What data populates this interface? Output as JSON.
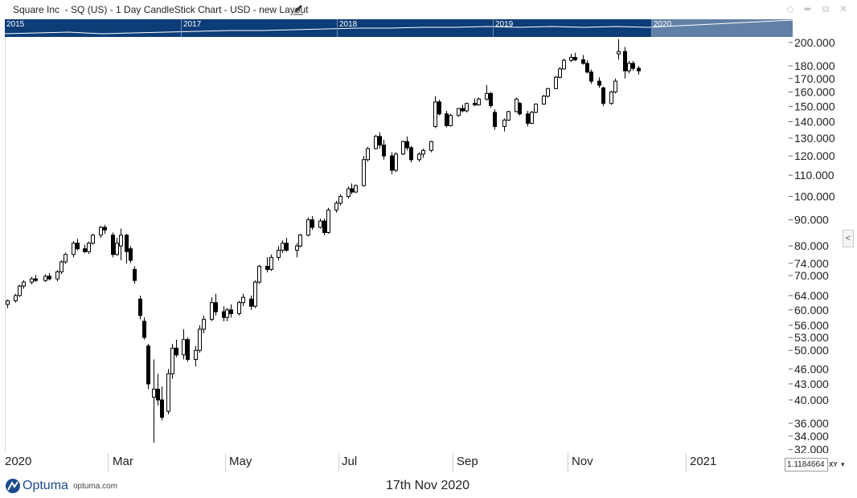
{
  "window": {
    "title": "Square Inc  - SQ (US) - 1 Day CandleStick Chart - USD - new Layout",
    "icons": [
      "edit-icon",
      "diamond-icon",
      "pin-icon",
      "restore-icon",
      "close-icon"
    ]
  },
  "navigator": {
    "years": [
      "2015",
      "2017",
      "2018",
      "2019",
      "2020"
    ],
    "background": "#0d3d77"
  },
  "date_axis": {
    "labels": [
      "2020",
      "Mar",
      "May",
      "Jul",
      "Sep",
      "Nov",
      "2021"
    ]
  },
  "price_axis": {
    "labels": [
      "200.000",
      "180.000",
      "170.000",
      "160.000",
      "150.000",
      "140.000",
      "130.000",
      "120.000",
      "110.000",
      "100.000",
      "90.000",
      "80.000",
      "74.000",
      "70.000",
      "64.000",
      "60.000",
      "56.000",
      "53.000",
      "50.000",
      "46.000",
      "43.000",
      "40.000",
      "36.000",
      "34.000",
      "32.000"
    ]
  },
  "controls": {
    "scale_value": "1.1184664",
    "xy_label": "XY",
    "collapse_glyph": "<"
  },
  "footer": {
    "brand": "Optuma",
    "url": "optuma.com",
    "date": "17th Nov 2020"
  },
  "chart_data": {
    "type": "candlestick",
    "symbol": "SQ (US)",
    "interval": "1 Day",
    "currency": "USD",
    "y_scale": "log",
    "ylim": [
      31.5,
      205
    ],
    "x_range": [
      "2020-01-01",
      "2021-01-31"
    ],
    "grid": false,
    "ohlc_series": [
      [
        "2020-01-02",
        61.5,
        62.8,
        60.5,
        62.5
      ],
      [
        "2020-01-06",
        62.5,
        64.5,
        62.0,
        64.0
      ],
      [
        "2020-01-08",
        64.0,
        67.2,
        63.6,
        66.8
      ],
      [
        "2020-01-10",
        66.8,
        68.6,
        66.0,
        68.0
      ],
      [
        "2020-01-14",
        68.0,
        69.6,
        67.3,
        69.0
      ],
      [
        "2020-01-16",
        69.0,
        70.2,
        68.0,
        68.5
      ],
      [
        "2020-01-21",
        68.5,
        70.4,
        68.0,
        69.8
      ],
      [
        "2020-01-23",
        69.8,
        70.8,
        68.5,
        69.0
      ],
      [
        "2020-01-27",
        69.0,
        71.8,
        68.2,
        71.2
      ],
      [
        "2020-01-29",
        71.2,
        75.0,
        70.5,
        74.5
      ],
      [
        "2020-01-31",
        74.5,
        77.6,
        73.8,
        77.0
      ],
      [
        "2020-02-04",
        77.0,
        81.8,
        76.0,
        81.0
      ],
      [
        "2020-02-06",
        81.0,
        82.6,
        78.5,
        79.0
      ],
      [
        "2020-02-10",
        79.0,
        80.5,
        77.5,
        78.0
      ],
      [
        "2020-02-12",
        78.0,
        81.6,
        77.2,
        81.0
      ],
      [
        "2020-02-14",
        81.0,
        84.5,
        80.5,
        84.0
      ],
      [
        "2020-02-18",
        84.0,
        87.6,
        83.0,
        87.0
      ],
      [
        "2020-02-20",
        87.0,
        88.0,
        84.5,
        86.0
      ],
      [
        "2020-02-24",
        84.0,
        85.0,
        76.0,
        77.0
      ],
      [
        "2020-02-26",
        77.0,
        83.0,
        76.5,
        81.0
      ],
      [
        "2020-02-28",
        80.0,
        86.5,
        75.0,
        84.0
      ],
      [
        "2020-03-02",
        84.0,
        84.5,
        74.0,
        78.0
      ],
      [
        "2020-03-04",
        79.0,
        80.0,
        74.0,
        75.0
      ],
      [
        "2020-03-06",
        72.0,
        73.0,
        67.5,
        68.5
      ],
      [
        "2020-03-09",
        63.0,
        64.0,
        57.5,
        58.5
      ],
      [
        "2020-03-11",
        57.0,
        58.0,
        52.5,
        53.0
      ],
      [
        "2020-03-13",
        51.0,
        51.5,
        42.0,
        43.0
      ],
      [
        "2020-03-16",
        40.5,
        48.0,
        33.0,
        42.0
      ],
      [
        "2020-03-18",
        42.0,
        45.0,
        39.0,
        40.0
      ],
      [
        "2020-03-20",
        40.0,
        42.5,
        36.5,
        37.0
      ],
      [
        "2020-03-23",
        38.0,
        46.0,
        37.5,
        45.0
      ],
      [
        "2020-03-25",
        45.0,
        51.5,
        44.0,
        50.5
      ],
      [
        "2020-03-27",
        50.5,
        52.5,
        48.5,
        49.0
      ],
      [
        "2020-03-31",
        49.0,
        55.0,
        48.0,
        52.5
      ],
      [
        "2020-04-02",
        52.5,
        53.0,
        47.5,
        48.0
      ],
      [
        "2020-04-06",
        48.0,
        51.0,
        46.5,
        50.0
      ],
      [
        "2020-04-08",
        50.0,
        56.0,
        49.5,
        55.0
      ],
      [
        "2020-04-10",
        55.0,
        58.5,
        54.0,
        57.5
      ],
      [
        "2020-04-14",
        57.5,
        63.5,
        57.0,
        62.0
      ],
      [
        "2020-04-16",
        62.0,
        64.5,
        58.5,
        59.5
      ],
      [
        "2020-04-20",
        59.5,
        61.0,
        57.0,
        58.0
      ],
      [
        "2020-04-22",
        58.0,
        60.5,
        57.0,
        60.0
      ],
      [
        "2020-04-24",
        60.0,
        61.5,
        58.0,
        59.0
      ],
      [
        "2020-04-28",
        59.0,
        62.5,
        58.5,
        62.0
      ],
      [
        "2020-04-30",
        62.0,
        64.5,
        61.0,
        63.5
      ],
      [
        "2020-05-04",
        63.0,
        64.0,
        60.0,
        61.0
      ],
      [
        "2020-05-06",
        61.0,
        68.5,
        60.5,
        68.0
      ],
      [
        "2020-05-08",
        68.0,
        73.5,
        67.5,
        73.0
      ],
      [
        "2020-05-12",
        73.0,
        76.0,
        71.0,
        72.0
      ],
      [
        "2020-05-14",
        72.0,
        77.0,
        71.5,
        76.0
      ],
      [
        "2020-05-18",
        76.0,
        80.0,
        75.0,
        78.5
      ],
      [
        "2020-05-20",
        78.5,
        82.0,
        77.5,
        81.0
      ],
      [
        "2020-05-22",
        81.0,
        83.0,
        78.0,
        78.5
      ],
      [
        "2020-05-27",
        78.5,
        81.0,
        76.0,
        80.0
      ],
      [
        "2020-05-29",
        80.0,
        84.5,
        79.5,
        84.0
      ],
      [
        "2020-06-02",
        84.0,
        91.0,
        83.5,
        90.0
      ],
      [
        "2020-06-04",
        90.0,
        91.5,
        86.0,
        87.0
      ],
      [
        "2020-06-08",
        87.0,
        90.5,
        86.5,
        89.5
      ],
      [
        "2020-06-10",
        89.5,
        90.5,
        84.0,
        85.0
      ],
      [
        "2020-06-12",
        85.0,
        95.0,
        84.5,
        94.0
      ],
      [
        "2020-06-16",
        94.0,
        98.0,
        93.0,
        97.0
      ],
      [
        "2020-06-18",
        97.0,
        101.0,
        96.0,
        100.0
      ],
      [
        "2020-06-22",
        100.0,
        104.5,
        99.0,
        103.5
      ],
      [
        "2020-06-24",
        103.5,
        106.0,
        101.0,
        102.0
      ],
      [
        "2020-06-26",
        102.0,
        105.5,
        101.5,
        105.0
      ],
      [
        "2020-06-30",
        105.0,
        120.0,
        104.5,
        118.0
      ],
      [
        "2020-07-02",
        118.0,
        125.0,
        117.0,
        124.0
      ],
      [
        "2020-07-06",
        124.0,
        132.0,
        123.5,
        131.0
      ],
      [
        "2020-07-08",
        131.0,
        133.5,
        124.0,
        126.0
      ],
      [
        "2020-07-10",
        126.0,
        129.0,
        118.0,
        120.0
      ],
      [
        "2020-07-14",
        120.0,
        122.0,
        110.5,
        112.5
      ],
      [
        "2020-07-16",
        112.5,
        122.0,
        111.5,
        121.0
      ],
      [
        "2020-07-20",
        121.0,
        128.5,
        120.5,
        128.0
      ],
      [
        "2020-07-22",
        128.0,
        131.0,
        123.0,
        124.5
      ],
      [
        "2020-07-24",
        124.5,
        125.5,
        116.5,
        118.0
      ],
      [
        "2020-07-28",
        118.0,
        122.0,
        117.0,
        121.0
      ],
      [
        "2020-07-30",
        121.0,
        124.0,
        119.0,
        123.0
      ],
      [
        "2020-08-03",
        123.0,
        128.5,
        122.0,
        128.0
      ],
      [
        "2020-08-05",
        137.0,
        157.0,
        136.0,
        153.0
      ],
      [
        "2020-08-07",
        153.0,
        154.5,
        144.0,
        145.0
      ],
      [
        "2020-08-11",
        145.0,
        147.0,
        136.5,
        137.5
      ],
      [
        "2020-08-13",
        137.5,
        145.0,
        137.0,
        144.0
      ],
      [
        "2020-08-17",
        144.0,
        149.0,
        143.0,
        148.5
      ],
      [
        "2020-08-19",
        148.5,
        151.0,
        146.0,
        147.0
      ],
      [
        "2020-08-21",
        147.0,
        152.5,
        146.0,
        152.0
      ],
      [
        "2020-08-25",
        152.0,
        155.5,
        150.0,
        151.0
      ],
      [
        "2020-08-27",
        151.0,
        156.0,
        150.5,
        155.0
      ],
      [
        "2020-08-31",
        155.0,
        165.0,
        154.0,
        159.0
      ],
      [
        "2020-09-02",
        159.0,
        160.0,
        149.0,
        150.5
      ],
      [
        "2020-09-04",
        146.0,
        148.0,
        135.0,
        137.0
      ],
      [
        "2020-09-09",
        137.0,
        142.0,
        134.0,
        141.0
      ],
      [
        "2020-09-11",
        141.0,
        147.0,
        140.5,
        146.5
      ],
      [
        "2020-09-15",
        146.5,
        156.0,
        146.0,
        155.0
      ],
      [
        "2020-09-17",
        152.0,
        153.0,
        144.0,
        145.0
      ],
      [
        "2020-09-21",
        145.0,
        147.0,
        137.0,
        139.0
      ],
      [
        "2020-09-23",
        139.0,
        147.0,
        138.5,
        146.0
      ],
      [
        "2020-09-25",
        146.0,
        152.0,
        145.5,
        151.5
      ],
      [
        "2020-09-29",
        151.5,
        158.0,
        151.0,
        157.0
      ],
      [
        "2020-10-01",
        157.0,
        163.0,
        156.0,
        162.5
      ],
      [
        "2020-10-05",
        162.5,
        172.0,
        162.0,
        171.0
      ],
      [
        "2020-10-07",
        171.0,
        179.0,
        170.0,
        177.5
      ],
      [
        "2020-10-09",
        177.5,
        186.0,
        177.0,
        184.5
      ],
      [
        "2020-10-13",
        184.5,
        190.0,
        183.0,
        187.0
      ],
      [
        "2020-10-15",
        187.0,
        191.0,
        184.0,
        185.0
      ],
      [
        "2020-10-19",
        185.0,
        189.0,
        181.0,
        182.0
      ],
      [
        "2020-10-21",
        182.0,
        184.5,
        174.0,
        175.0
      ],
      [
        "2020-10-23",
        175.0,
        177.0,
        166.0,
        168.0
      ],
      [
        "2020-10-27",
        168.0,
        171.0,
        163.0,
        165.0
      ],
      [
        "2020-10-29",
        163.0,
        164.0,
        150.0,
        152.0
      ],
      [
        "2020-11-02",
        152.0,
        161.0,
        151.0,
        160.0
      ],
      [
        "2020-11-04",
        160.0,
        170.0,
        159.0,
        168.0
      ],
      [
        "2020-11-06",
        190.0,
        203.0,
        185.0,
        192.0
      ],
      [
        "2020-11-09",
        192.0,
        196.0,
        170.0,
        176.0
      ],
      [
        "2020-11-11",
        176.0,
        184.0,
        174.0,
        182.0
      ],
      [
        "2020-11-13",
        182.0,
        184.0,
        176.0,
        178.0
      ],
      [
        "2020-11-16",
        178.0,
        180.0,
        173.0,
        176.0
      ]
    ]
  }
}
